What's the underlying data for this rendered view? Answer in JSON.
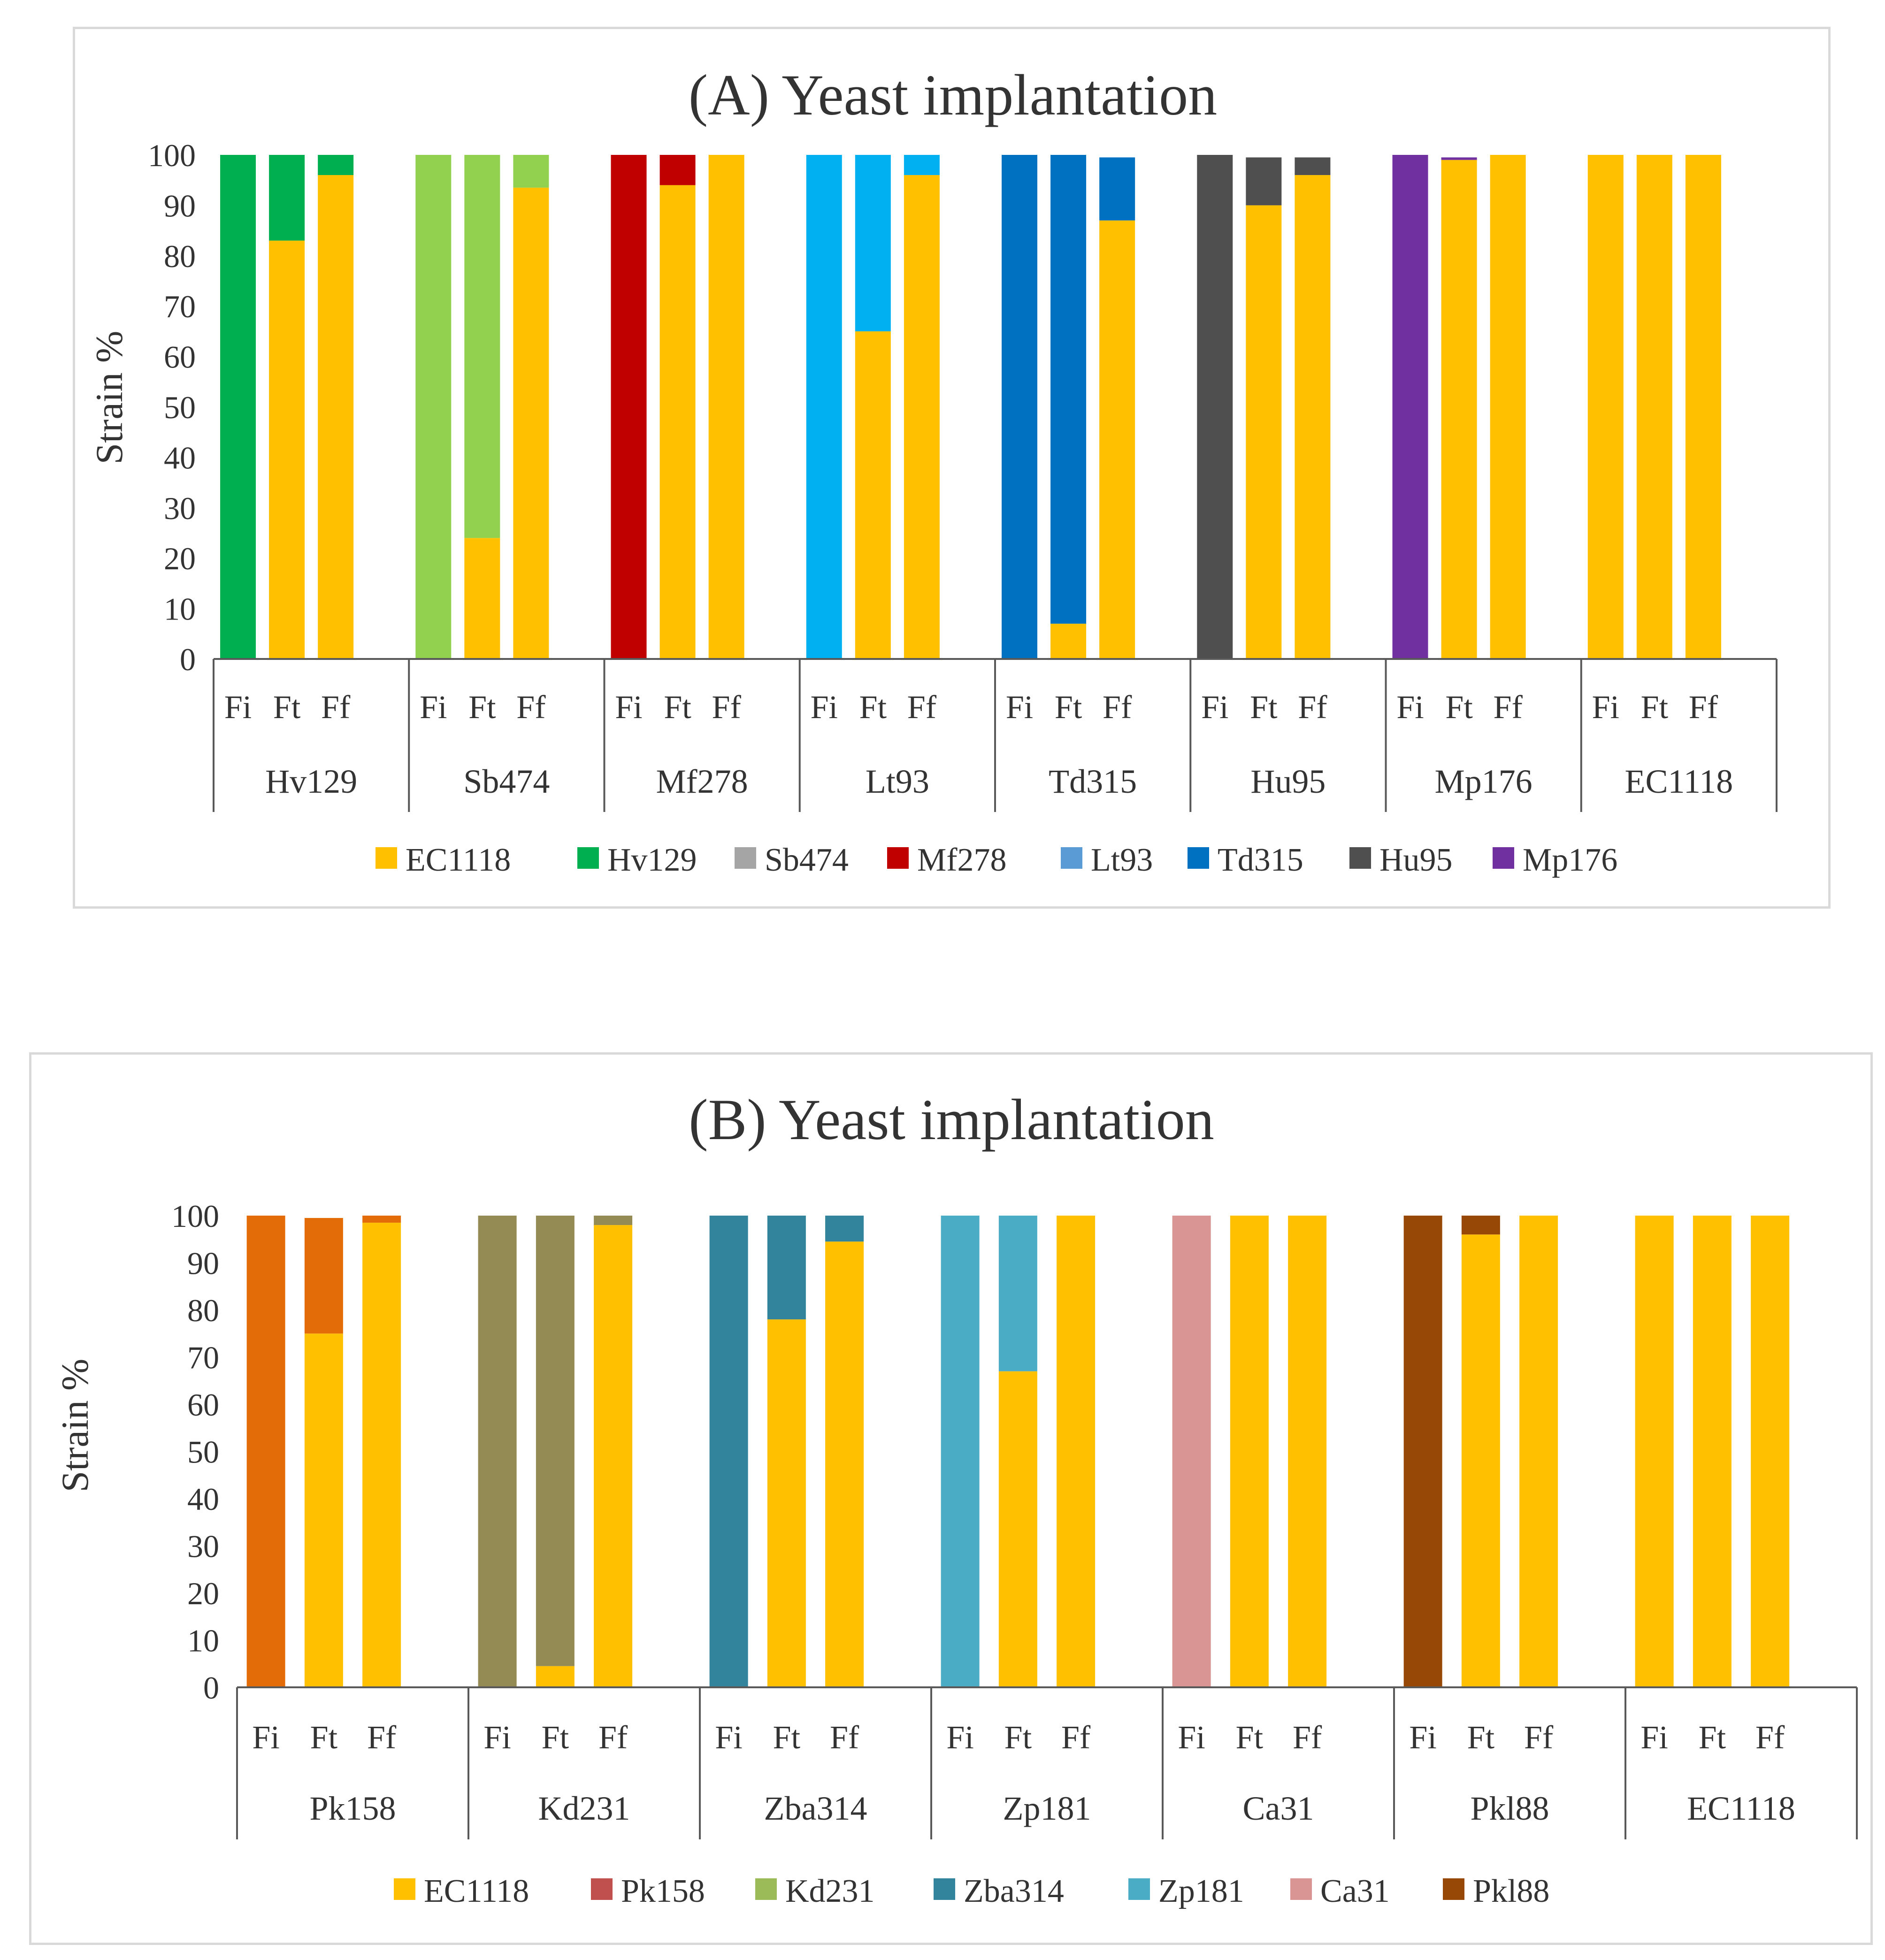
{
  "colors": {
    "EC1118": "#FFC000",
    "Hv129": "#00B050",
    "Sb474": "#A5A5A5",
    "Sb474_bar": "#92D050",
    "Mf278": "#C00000",
    "Lt93": "#5B9BD5",
    "Lt93_bar": "#00B0F0",
    "Td315": "#0070C0",
    "Hu95": "#4F4F4F",
    "Mp176": "#7030A0",
    "Pk158": "#C0504D",
    "Pk158_bar": "#E36C09",
    "Kd231": "#9BBB59",
    "Kd231_bar": "#948A54",
    "Zba314": "#31849B",
    "Zp181": "#4BACC6",
    "Ca31": "#D99594",
    "Pkl88": "#974806",
    "axis": "#595959",
    "grid": "#bfbfbf"
  },
  "chart_data": [
    {
      "type": "bar",
      "stacked": true,
      "title": "(A) Yeast implantation",
      "ylabel": "Strain %",
      "ylim": [
        0,
        100
      ],
      "yticks": [
        "0",
        "10",
        "20",
        "30",
        "40",
        "50",
        "60",
        "70",
        "80",
        "90",
        "100"
      ],
      "phases": [
        "Fi",
        "Ft",
        "Ff"
      ],
      "groups": [
        {
          "name": "Hv129",
          "bars": [
            {
              "EC1118": 0,
              "Hv129": 100
            },
            {
              "EC1118": 83,
              "Hv129": 17
            },
            {
              "EC1118": 96,
              "Hv129": 4
            }
          ]
        },
        {
          "name": "Sb474",
          "bars": [
            {
              "EC1118": 0,
              "Sb474": 100
            },
            {
              "EC1118": 24,
              "Sb474": 76
            },
            {
              "EC1118": 93.5,
              "Sb474": 6.5
            }
          ]
        },
        {
          "name": "Mf278",
          "bars": [
            {
              "EC1118": 0,
              "Mf278": 100
            },
            {
              "EC1118": 94,
              "Mf278": 6
            },
            {
              "EC1118": 100,
              "Mf278": 0
            }
          ]
        },
        {
          "name": "Lt93",
          "bars": [
            {
              "EC1118": 0,
              "Lt93": 100
            },
            {
              "EC1118": 65,
              "Lt93": 35
            },
            {
              "EC1118": 96,
              "Lt93": 4
            }
          ]
        },
        {
          "name": "Td315",
          "bars": [
            {
              "EC1118": 0,
              "Td315": 100
            },
            {
              "EC1118": 7,
              "Td315": 93
            },
            {
              "EC1118": 87,
              "Td315": 12.5
            }
          ]
        },
        {
          "name": "Hu95",
          "bars": [
            {
              "EC1118": 0,
              "Hu95": 100
            },
            {
              "EC1118": 90,
              "Hu95": 9.5
            },
            {
              "EC1118": 96,
              "Hu95": 3.5
            }
          ]
        },
        {
          "name": "Mp176",
          "bars": [
            {
              "EC1118": 0,
              "Mp176": 100
            },
            {
              "EC1118": 99,
              "Mp176": 0.5
            },
            {
              "EC1118": 100,
              "Mp176": 0
            }
          ]
        },
        {
          "name": "EC1118",
          "bars": [
            {
              "EC1118": 100
            },
            {
              "EC1118": 100
            },
            {
              "EC1118": 100
            }
          ]
        }
      ],
      "legend": [
        "EC1118",
        "Hv129",
        "Sb474",
        "Mf278",
        "Lt93",
        "Td315",
        "Hu95",
        "Mp176"
      ],
      "legend_position": "bottom"
    },
    {
      "type": "bar",
      "stacked": true,
      "title": "(B) Yeast implantation",
      "ylabel": "Strain %",
      "ylim": [
        0,
        100
      ],
      "yticks": [
        "0",
        "10",
        "20",
        "30",
        "40",
        "50",
        "60",
        "70",
        "80",
        "90",
        "100"
      ],
      "phases": [
        "Fi",
        "Ft",
        "Ff"
      ],
      "groups": [
        {
          "name": "Pk158",
          "bars": [
            {
              "EC1118": 0,
              "Pk158": 100
            },
            {
              "EC1118": 75,
              "Pk158": 24.5
            },
            {
              "EC1118": 98.5,
              "Pk158": 1.5
            }
          ]
        },
        {
          "name": "Kd231",
          "bars": [
            {
              "EC1118": 0,
              "Kd231": 100
            },
            {
              "EC1118": 4.5,
              "Kd231": 95.5
            },
            {
              "EC1118": 98,
              "Kd231": 2
            }
          ]
        },
        {
          "name": "Zba314",
          "bars": [
            {
              "EC1118": 0,
              "Zba314": 100
            },
            {
              "EC1118": 78,
              "Zba314": 22
            },
            {
              "EC1118": 94.5,
              "Zba314": 5.5
            }
          ]
        },
        {
          "name": "Zp181",
          "bars": [
            {
              "EC1118": 0,
              "Zp181": 100
            },
            {
              "EC1118": 67,
              "Zp181": 33
            },
            {
              "EC1118": 100,
              "Zp181": 0
            }
          ]
        },
        {
          "name": "Ca31",
          "bars": [
            {
              "EC1118": 0,
              "Ca31": 100
            },
            {
              "EC1118": 100,
              "Ca31": 0
            },
            {
              "EC1118": 100,
              "Ca31": 0
            }
          ]
        },
        {
          "name": "Pkl88",
          "bars": [
            {
              "EC1118": 0,
              "Pkl88": 100
            },
            {
              "EC1118": 96,
              "Pkl88": 4
            },
            {
              "EC1118": 100,
              "Pkl88": 0
            }
          ]
        },
        {
          "name": "EC1118",
          "bars": [
            {
              "EC1118": 100
            },
            {
              "EC1118": 100
            },
            {
              "EC1118": 100
            }
          ]
        }
      ],
      "legend": [
        "EC1118",
        "Pk158",
        "Kd231",
        "Zba314",
        "Zp181",
        "Ca31",
        "Pkl88"
      ],
      "legend_position": "bottom"
    }
  ]
}
